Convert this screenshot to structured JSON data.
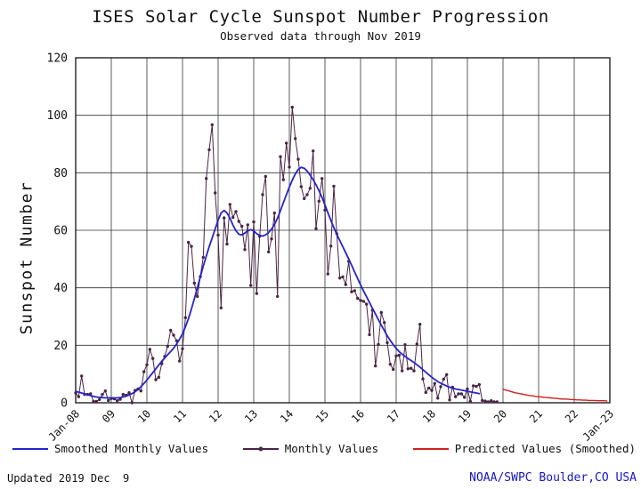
{
  "title": "ISES Solar Cycle Sunspot Number Progression",
  "subtitle": "Observed data through Nov 2019",
  "footer": {
    "updated": "Updated 2019 Dec  9",
    "credit": "NOAA/SWPC Boulder,CO USA"
  },
  "colors": {
    "smoothed": "#2424cc",
    "monthly": "#4a2545",
    "predicted": "#d01f1f",
    "credit_text": "#1616c8",
    "grid": "#333333",
    "text": "#111111"
  },
  "legend": [
    {
      "label": "Smoothed Monthly Values",
      "color": "#2424cc",
      "style": "line"
    },
    {
      "label": "Monthly Values",
      "color": "#4a2545",
      "style": "line-dot"
    },
    {
      "label": "Predicted Values (Smoothed)",
      "color": "#d01f1f",
      "style": "line"
    }
  ],
  "chart_data": {
    "type": "line",
    "title": "ISES Solar Cycle Sunspot Number Progression",
    "subtitle": "Observed data through Nov 2019",
    "xlabel": "",
    "ylabel": "Sunspot Number",
    "ylim": [
      0,
      120
    ],
    "yticks": [
      0,
      20,
      40,
      60,
      80,
      100,
      120
    ],
    "x_start_year": 2008,
    "x_end_year": 2023,
    "xtick_labels": [
      "Jan-08",
      "09",
      "10",
      "11",
      "12",
      "13",
      "14",
      "15",
      "16",
      "17",
      "18",
      "19",
      "20",
      "21",
      "22",
      "Jan-23"
    ],
    "grid": true,
    "legend_position": "bottom",
    "series": [
      {
        "name": "Monthly Values",
        "color": "#4a2545",
        "marker": true,
        "start_year": 2008,
        "start_month": 1,
        "values": [
          3.4,
          2.1,
          9.3,
          2.9,
          2.9,
          3.1,
          0.5,
          0.5,
          1.1,
          2.9,
          4.1,
          0.8,
          1.5,
          1.4,
          0.7,
          1.2,
          2.9,
          2.6,
          3.5,
          0.0,
          4.3,
          4.8,
          4.1,
          10.8,
          13.2,
          18.6,
          15.4,
          8.0,
          8.8,
          13.6,
          16.1,
          19.6,
          25.2,
          23.5,
          21.6,
          14.5,
          18.8,
          29.6,
          55.8,
          54.4,
          41.6,
          37.0,
          43.9,
          50.6,
          78.0,
          88.0,
          96.7,
          73.0,
          58.3,
          33.0,
          64.3,
          55.2,
          69.0,
          64.5,
          66.5,
          63.1,
          61.4,
          53.3,
          61.9,
          40.8,
          62.9,
          38.0,
          57.9,
          72.4,
          78.7,
          52.5,
          57.0,
          66.0,
          37.0,
          85.6,
          77.6,
          90.3,
          82.0,
          102.8,
          91.9,
          84.7,
          75.2,
          71.0,
          72.4,
          74.6,
          87.6,
          60.6,
          70.1,
          78.0,
          67.0,
          44.8,
          54.5,
          75.3,
          58.8,
          43.4,
          43.8,
          41.1,
          49.2,
          38.6,
          39.0,
          36.3,
          35.6,
          35.3,
          34.3,
          23.7,
          32.2,
          12.8,
          20.3,
          31.4,
          27.9,
          20.9,
          13.4,
          11.6,
          16.3,
          16.5,
          11.1,
          20.2,
          11.8,
          12.0,
          11.1,
          20.4,
          27.3,
          8.3,
          3.6,
          5.1,
          4.3,
          6.7,
          1.6,
          5.6,
          8.2,
          9.8,
          1.0,
          5.4,
          2.1,
          3.1,
          3.1,
          1.9,
          4.8,
          0.5,
          5.9,
          5.7,
          6.3,
          0.8,
          0.6,
          0.3,
          0.7,
          0.3,
          0.3
        ]
      },
      {
        "name": "Smoothed Monthly Values",
        "color": "#2424cc",
        "marker": false,
        "start_year": 2008,
        "start_month": 1,
        "values": [
          4.0,
          3.7,
          3.4,
          3.1,
          2.8,
          2.5,
          2.2,
          2.0,
          1.9,
          1.8,
          1.7,
          1.7,
          1.7,
          1.7,
          1.7,
          1.8,
          2.0,
          2.3,
          2.7,
          3.2,
          3.8,
          4.6,
          5.6,
          6.7,
          7.9,
          9.2,
          10.5,
          11.8,
          13.1,
          14.4,
          15.6,
          16.7,
          17.8,
          19.0,
          20.4,
          22.1,
          24.0,
          26.4,
          29.3,
          32.6,
          36.2,
          40.0,
          43.8,
          47.5,
          51.0,
          54.3,
          57.3,
          60.5,
          63.5,
          66.0,
          66.9,
          66.0,
          64.2,
          61.8,
          59.8,
          58.6,
          58.4,
          59.0,
          59.8,
          60.2,
          59.8,
          58.8,
          58.2,
          58.0,
          58.4,
          59.2,
          60.4,
          62.0,
          64.2,
          66.8,
          69.6,
          72.4,
          75.0,
          77.4,
          79.6,
          81.2,
          81.9,
          81.6,
          80.6,
          79.2,
          77.6,
          75.8,
          73.8,
          71.4,
          68.8,
          66.1,
          63.4,
          60.9,
          58.6,
          56.4,
          54.3,
          52.2,
          50.0,
          47.8,
          45.5,
          43.2,
          41.0,
          38.9,
          36.9,
          34.9,
          32.9,
          30.9,
          28.9,
          27.0,
          25.1,
          23.3,
          21.7,
          20.2,
          18.9,
          17.8,
          16.9,
          16.1,
          15.4,
          14.7,
          14.0,
          13.2,
          12.4,
          11.5,
          10.6,
          9.7,
          8.9,
          8.1,
          7.4,
          6.8,
          6.3,
          5.8,
          5.4,
          5.1,
          4.8,
          4.6,
          4.4,
          4.2,
          4.0,
          3.8,
          3.6,
          3.4,
          3.2
        ]
      },
      {
        "name": "Predicted Values (Smoothed)",
        "color": "#d01f1f",
        "marker": false,
        "start_year": 2020,
        "start_month": 1,
        "values": [
          4.7,
          4.4,
          4.1,
          3.8,
          3.5,
          3.3,
          3.1,
          2.9,
          2.7,
          2.5,
          2.4,
          2.2,
          2.1,
          2.0,
          1.9,
          1.8,
          1.7,
          1.6,
          1.5,
          1.4,
          1.3,
          1.3,
          1.2,
          1.1,
          1.1,
          1.0,
          1.0,
          0.9,
          0.9,
          0.8,
          0.8,
          0.8,
          0.7,
          0.7,
          0.7,
          0.6
        ]
      }
    ]
  }
}
